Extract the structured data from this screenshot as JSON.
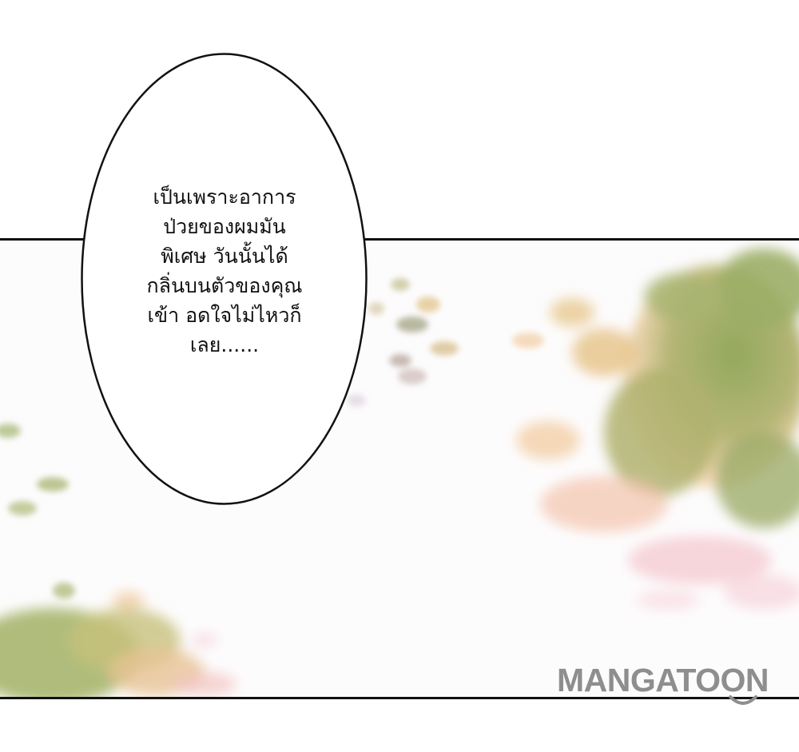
{
  "speech_bubble": {
    "text": "เป็นเพราะอาการ\nป่วยของผมมัน\nพิเศษ วันนั้นได้\nกลิ่นบนตัวของคุณ\nเข้า อดใจไม่ไหวก็\nเลย......"
  },
  "watermark": {
    "text": "MANGATOON"
  },
  "colors": {
    "panel_border": "#111111",
    "foliage_green": "#9aaa66",
    "foliage_orange": "#f2c98f",
    "foliage_pink": "#f3c8d3",
    "watermark_gray": "#8e8e8e"
  }
}
